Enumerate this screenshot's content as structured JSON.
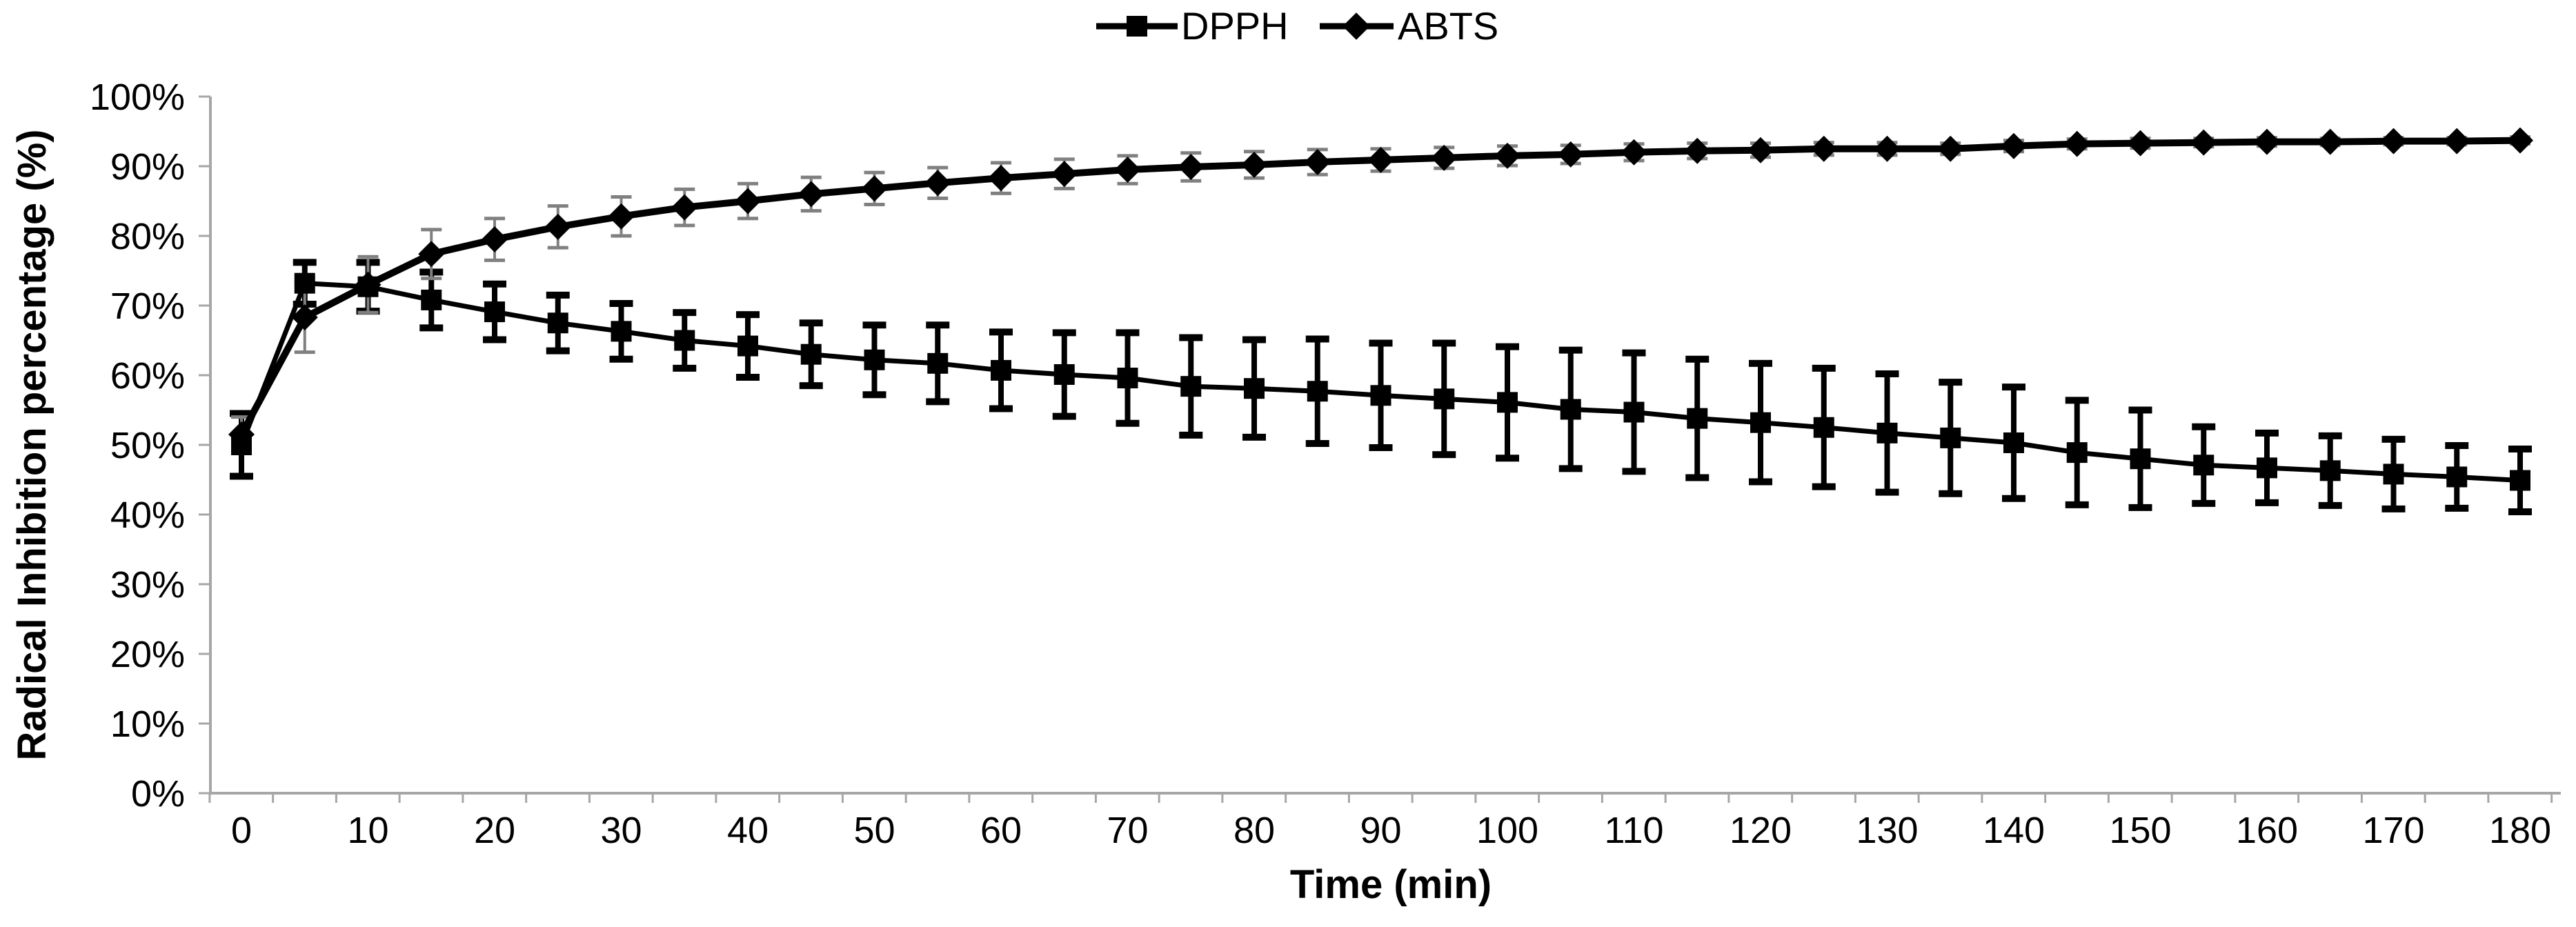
{
  "chart_data": {
    "type": "line",
    "title": "",
    "xlabel": "Time (min)",
    "ylabel": "Radical Inhibition percentage (%)",
    "xlim": [
      0,
      180
    ],
    "ylim": [
      0,
      100
    ],
    "grid": false,
    "legend_position": "top-center",
    "x_tick_labels": [
      "0",
      "10",
      "20",
      "30",
      "40",
      "50",
      "60",
      "70",
      "80",
      "90",
      "100",
      "110",
      "120",
      "130",
      "140",
      "150",
      "160",
      "170",
      "180"
    ],
    "y_tick_labels": [
      "0%",
      "10%",
      "20%",
      "30%",
      "40%",
      "50%",
      "60%",
      "70%",
      "80%",
      "90%",
      "100%"
    ],
    "x": [
      0,
      5,
      10,
      15,
      20,
      25,
      30,
      35,
      40,
      45,
      50,
      55,
      60,
      65,
      70,
      75,
      80,
      85,
      90,
      95,
      100,
      105,
      110,
      115,
      120,
      125,
      130,
      135,
      140,
      145,
      150,
      155,
      160,
      165,
      170,
      175,
      180
    ],
    "series": [
      {
        "name": "DPPH",
        "marker": "square",
        "line_color": "#000000",
        "error_bar_color": "#000000",
        "values": [
          50.0,
          73.2,
          72.7,
          70.8,
          69.1,
          67.5,
          66.3,
          65.0,
          64.2,
          63.0,
          62.2,
          61.7,
          60.7,
          60.1,
          59.6,
          58.4,
          58.1,
          57.7,
          57.1,
          56.6,
          56.1,
          55.1,
          54.7,
          53.8,
          53.2,
          52.5,
          51.7,
          51.0,
          50.3,
          48.9,
          48.0,
          47.1,
          46.7,
          46.3,
          45.8,
          45.4,
          44.9
        ],
        "errors": [
          4.5,
          3,
          3.5,
          4,
          4,
          4,
          4,
          4,
          4.5,
          4.5,
          5,
          5.5,
          5.5,
          6,
          6.5,
          7,
          7,
          7.5,
          7.5,
          8,
          8,
          8.5,
          8.5,
          8.5,
          8.5,
          8.5,
          8.5,
          8,
          8,
          7.5,
          7,
          5.5,
          5,
          5,
          5,
          4.5,
          4.5
        ]
      },
      {
        "name": "ABTS",
        "marker": "diamond",
        "line_color": "#000000",
        "error_bar_color": "#808080",
        "values": [
          51.5,
          68.3,
          73.0,
          77.4,
          79.5,
          81.3,
          82.8,
          84.1,
          85.0,
          86.0,
          86.8,
          87.6,
          88.3,
          88.9,
          89.5,
          89.9,
          90.2,
          90.6,
          90.9,
          91.2,
          91.5,
          91.7,
          92.0,
          92.2,
          92.3,
          92.5,
          92.5,
          92.5,
          92.9,
          93.2,
          93.3,
          93.4,
          93.5,
          93.5,
          93.6,
          93.6,
          93.7
        ],
        "errors": [
          2.5,
          5,
          4,
          3.5,
          3,
          3,
          2.8,
          2.6,
          2.5,
          2.4,
          2.3,
          2.2,
          2.2,
          2.1,
          2,
          2,
          1.9,
          1.8,
          1.6,
          1.5,
          1.4,
          1.3,
          1.2,
          1.1,
          1,
          0.9,
          0.9,
          0.8,
          0.8,
          0.7,
          0.7,
          0.6,
          0.6,
          0.5,
          0.5,
          0.5,
          0.5
        ]
      }
    ],
    "axis_color": "#a6a6a6"
  },
  "legend": {
    "items": [
      {
        "label": "DPPH"
      },
      {
        "label": "ABTS"
      }
    ]
  }
}
